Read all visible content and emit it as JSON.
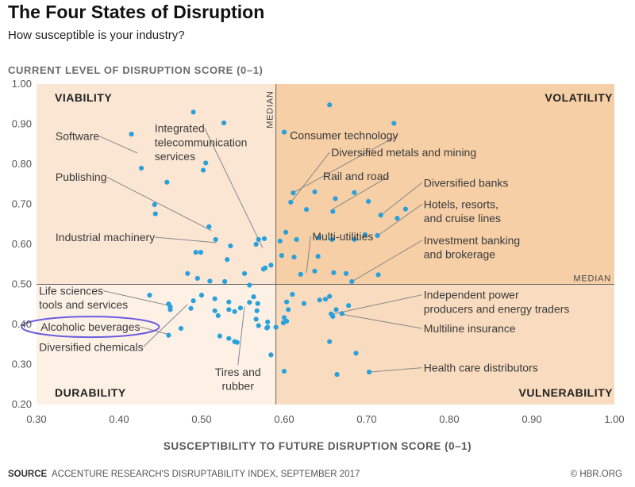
{
  "header": {
    "title": "The Four States of Disruption",
    "subtitle": "How susceptible is your industry?"
  },
  "footer": {
    "source_label": "SOURCE",
    "source_text": "ACCENTURE RESEARCH'S DISRUPTABILITY INDEX, SEPTEMBER 2017",
    "credit": "© HBR.ORG"
  },
  "colors": {
    "dot": "#2aa0dc",
    "quad_viability": "#fbe6d4",
    "quad_volatility": "#f6cfa6",
    "quad_durability": "#fdf1e6",
    "quad_vulnerability": "#f9dcbf",
    "leader": "#888888",
    "highlight": "#6c5ce0"
  },
  "chart_data": {
    "type": "scatter",
    "title": "The Four States of Disruption",
    "subtitle": "How susceptible is your industry?",
    "xlabel": "SUSCEPTIBILITY TO FUTURE DISRUPTION SCORE (0–1)",
    "ylabel": "CURRENT LEVEL OF DISRUPTION SCORE (0–1)",
    "xlim": [
      0.3,
      1.0
    ],
    "ylim": [
      0.2,
      1.0
    ],
    "x_ticks": [
      "0.30",
      "0.40",
      "0.50",
      "0.60",
      "0.70",
      "0.80",
      "0.90",
      "1.00"
    ],
    "y_ticks": [
      "1.00",
      "0.90",
      "0.80",
      "0.70",
      "0.60",
      "0.50",
      "0.40",
      "0.30",
      "0.20"
    ],
    "median_x": 0.59,
    "median_y": 0.5,
    "median_label": "MEDIAN",
    "quadrants": [
      "VIABILITY",
      "VOLATILITY",
      "DURABILITY",
      "VULNERABILITY"
    ],
    "points": [
      [
        0.415,
        0.875
      ],
      [
        0.427,
        0.79
      ],
      [
        0.49,
        0.93
      ],
      [
        0.527,
        0.903
      ],
      [
        0.458,
        0.755
      ],
      [
        0.443,
        0.699
      ],
      [
        0.444,
        0.676
      ],
      [
        0.505,
        0.803
      ],
      [
        0.502,
        0.785
      ],
      [
        0.509,
        0.644
      ],
      [
        0.517,
        0.612
      ],
      [
        0.493,
        0.58
      ],
      [
        0.499,
        0.58
      ],
      [
        0.531,
        0.562
      ],
      [
        0.535,
        0.596
      ],
      [
        0.569,
        0.612
      ],
      [
        0.576,
        0.614
      ],
      [
        0.483,
        0.527
      ],
      [
        0.495,
        0.515
      ],
      [
        0.51,
        0.508
      ],
      [
        0.528,
        0.507
      ],
      [
        0.552,
        0.527
      ],
      [
        0.558,
        0.498
      ],
      [
        0.566,
        0.6
      ],
      [
        0.577,
        0.541
      ],
      [
        0.575,
        0.538
      ],
      [
        0.584,
        0.548
      ],
      [
        0.655,
        0.948
      ],
      [
        0.733,
        0.902
      ],
      [
        0.6,
        0.88
      ],
      [
        0.611,
        0.728
      ],
      [
        0.608,
        0.705
      ],
      [
        0.637,
        0.731
      ],
      [
        0.627,
        0.687
      ],
      [
        0.659,
        0.682
      ],
      [
        0.662,
        0.714
      ],
      [
        0.685,
        0.729
      ],
      [
        0.702,
        0.707
      ],
      [
        0.717,
        0.673
      ],
      [
        0.737,
        0.665
      ],
      [
        0.747,
        0.688
      ],
      [
        0.602,
        0.63
      ],
      [
        0.615,
        0.612
      ],
      [
        0.642,
        0.617
      ],
      [
        0.658,
        0.612
      ],
      [
        0.685,
        0.612
      ],
      [
        0.698,
        0.624
      ],
      [
        0.713,
        0.622
      ],
      [
        0.595,
        0.608
      ],
      [
        0.597,
        0.572
      ],
      [
        0.612,
        0.568
      ],
      [
        0.62,
        0.525
      ],
      [
        0.637,
        0.533
      ],
      [
        0.641,
        0.57
      ],
      [
        0.66,
        0.529
      ],
      [
        0.675,
        0.527
      ],
      [
        0.682,
        0.507
      ],
      [
        0.714,
        0.524
      ],
      [
        0.437,
        0.473
      ],
      [
        0.46,
        0.451
      ],
      [
        0.462,
        0.444
      ],
      [
        0.462,
        0.437
      ],
      [
        0.487,
        0.44
      ],
      [
        0.49,
        0.459
      ],
      [
        0.5,
        0.473
      ],
      [
        0.516,
        0.464
      ],
      [
        0.516,
        0.434
      ],
      [
        0.52,
        0.422
      ],
      [
        0.533,
        0.456
      ],
      [
        0.533,
        0.437
      ],
      [
        0.54,
        0.432
      ],
      [
        0.547,
        0.441
      ],
      [
        0.558,
        0.455
      ],
      [
        0.563,
        0.469
      ],
      [
        0.568,
        0.452
      ],
      [
        0.567,
        0.434
      ],
      [
        0.566,
        0.413
      ],
      [
        0.569,
        0.397
      ],
      [
        0.579,
        0.391
      ],
      [
        0.58,
        0.393
      ],
      [
        0.58,
        0.406
      ],
      [
        0.584,
        0.324
      ],
      [
        0.475,
        0.39
      ],
      [
        0.46,
        0.373
      ],
      [
        0.522,
        0.371
      ],
      [
        0.533,
        0.365
      ],
      [
        0.54,
        0.357
      ],
      [
        0.543,
        0.355
      ],
      [
        0.59,
        0.393
      ],
      [
        0.599,
        0.404
      ],
      [
        0.605,
        0.437
      ],
      [
        0.603,
        0.456
      ],
      [
        0.6,
        0.417
      ],
      [
        0.603,
        0.408
      ],
      [
        0.61,
        0.475
      ],
      [
        0.624,
        0.452
      ],
      [
        0.643,
        0.461
      ],
      [
        0.65,
        0.463
      ],
      [
        0.655,
        0.47
      ],
      [
        0.657,
        0.426
      ],
      [
        0.659,
        0.42
      ],
      [
        0.663,
        0.437
      ],
      [
        0.67,
        0.427
      ],
      [
        0.678,
        0.447
      ],
      [
        0.655,
        0.357
      ],
      [
        0.687,
        0.328
      ],
      [
        0.6,
        0.283
      ],
      [
        0.664,
        0.275
      ],
      [
        0.703,
        0.281
      ]
    ],
    "labels": [
      {
        "text": "Software",
        "x": 0.422,
        "y": 0.828,
        "tx": 0.323,
        "ty": 0.86,
        "a": "start"
      },
      {
        "text": "Integrated",
        "x": 0.574,
        "y": 0.591,
        "tx": 0.443,
        "ty": 0.88,
        "a": "start"
      },
      {
        "text": "telecommunication",
        "tx": 0.443,
        "ty": 0.845,
        "a": "start"
      },
      {
        "text": "services",
        "tx": 0.443,
        "ty": 0.81,
        "a": "start"
      },
      {
        "text": "Publishing",
        "x": 0.512,
        "y": 0.634,
        "tx": 0.323,
        "ty": 0.758,
        "a": "start"
      },
      {
        "text": "Industrial machinery",
        "x": 0.518,
        "y": 0.604,
        "tx": 0.323,
        "ty": 0.608,
        "a": "start"
      },
      {
        "text": "Life sciences",
        "x": 0.463,
        "y": 0.446,
        "tx": 0.303,
        "ty": 0.474,
        "a": "start"
      },
      {
        "text": "tools and services",
        "tx": 0.303,
        "ty": 0.44,
        "a": "start"
      },
      {
        "text": "Alcoholic beverages",
        "x": 0.462,
        "y": 0.374,
        "tx": 0.305,
        "ty": 0.384,
        "a": "start"
      },
      {
        "text": "Diversified chemicals",
        "x": 0.483,
        "y": 0.45,
        "tx": 0.303,
        "ty": 0.334,
        "a": "start"
      },
      {
        "text": "Tires and",
        "x": 0.552,
        "y": 0.445,
        "tx": 0.544,
        "ty": 0.271,
        "a": "middle"
      },
      {
        "text": "rubber",
        "tx": 0.544,
        "ty": 0.237,
        "a": "middle"
      },
      {
        "text": "Consumer technology",
        "x": 0.612,
        "y": 0.73,
        "tx": 0.607,
        "ty": 0.862,
        "a": "start"
      },
      {
        "text": "Diversified metals and mining",
        "x": 0.61,
        "y": 0.71,
        "tx": 0.657,
        "ty": 0.82,
        "a": "start"
      },
      {
        "text": "Rail and road",
        "x": 0.659,
        "y": 0.688,
        "tx": 0.647,
        "ty": 0.76,
        "a": "start"
      },
      {
        "text": "Diversified banks",
        "x": 0.718,
        "y": 0.674,
        "tx": 0.769,
        "ty": 0.744,
        "a": "start"
      },
      {
        "text": "Hotels, resorts,",
        "x": 0.715,
        "y": 0.624,
        "tx": 0.769,
        "ty": 0.69,
        "a": "start"
      },
      {
        "text": "and cruise lines",
        "tx": 0.769,
        "ty": 0.655,
        "a": "start"
      },
      {
        "text": "Multi-utilities",
        "x": 0.627,
        "y": 0.528,
        "tx": 0.634,
        "ty": 0.61,
        "a": "start"
      },
      {
        "text": "Investment banking",
        "x": 0.683,
        "y": 0.508,
        "tx": 0.769,
        "ty": 0.6,
        "a": "start"
      },
      {
        "text": "and brokerage",
        "tx": 0.769,
        "ty": 0.565,
        "a": "start"
      },
      {
        "text": "Independent power",
        "x": 0.657,
        "y": 0.425,
        "tx": 0.769,
        "ty": 0.464,
        "a": "start"
      },
      {
        "text": "producers and energy traders",
        "tx": 0.769,
        "ty": 0.429,
        "a": "start"
      },
      {
        "text": "Multiline insurance",
        "x": 0.671,
        "y": 0.425,
        "tx": 0.769,
        "ty": 0.38,
        "a": "start"
      },
      {
        "text": "Health care distributors",
        "x": 0.703,
        "y": 0.281,
        "tx": 0.769,
        "ty": 0.282,
        "a": "start"
      }
    ],
    "highlighted": "Alcoholic beverages"
  }
}
